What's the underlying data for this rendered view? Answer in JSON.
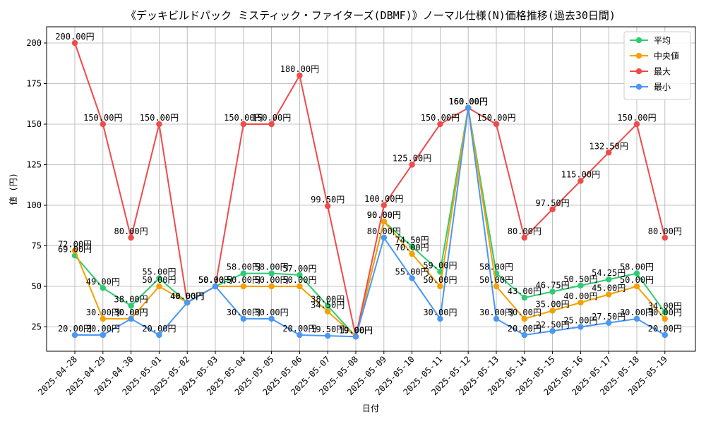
{
  "chart_data": {
    "type": "line",
    "title": "《デッキビルドパック ミスティック・ファイターズ(DBMF)》ノーマル仕様(N)価格推移(過去30日間)",
    "xlabel": "日付",
    "ylabel": "値 (円)",
    "ylim": [
      10,
      210
    ],
    "yticks": [
      25,
      50,
      75,
      100,
      125,
      150,
      175,
      200
    ],
    "grid": true,
    "legend_position": "top-right",
    "value_suffix": "円",
    "categories": [
      "2025-04-28",
      "2025-04-29",
      "2025-04-30",
      "2025-05-01",
      "2025-05-02",
      "2025-05-03",
      "2025-05-04",
      "2025-05-05",
      "2025-05-06",
      "2025-05-07",
      "2025-05-08",
      "2025-05-09",
      "2025-05-10",
      "2025-05-11",
      "2025-05-12",
      "2025-05-13",
      "2025-05-14",
      "2025-05-15",
      "2025-05-16",
      "2025-05-17",
      "2025-05-18",
      "2025-05-19"
    ],
    "series": [
      {
        "name": "平均",
        "color": "#2ecc71",
        "values": [
          69,
          49,
          38,
          55,
          40,
          50,
          58,
          58,
          57,
          38,
          19,
          90,
          74.5,
          59,
          160,
          58,
          43,
          46.75,
          50.5,
          54.25,
          58,
          34
        ]
      },
      {
        "name": "中央値",
        "color": "#f5a000",
        "values": [
          72,
          30,
          30,
          50,
          40,
          50,
          50,
          50,
          50,
          34.5,
          19,
          90,
          70,
          50,
          160,
          50,
          30,
          35,
          40,
          45,
          50,
          30
        ]
      },
      {
        "name": "最大",
        "color": "#ee4b4b",
        "values": [
          200,
          150,
          80,
          150,
          40,
          50,
          150,
          150,
          180,
          99.5,
          19,
          100,
          125,
          150,
          160,
          150,
          80,
          97.5,
          115,
          132.5,
          150,
          80
        ]
      },
      {
        "name": "最小",
        "color": "#4b97f2",
        "values": [
          20,
          20,
          30,
          20,
          40,
          50,
          30,
          30,
          20,
          19.5,
          19,
          80,
          55,
          30,
          160,
          30,
          20,
          22.5,
          25,
          27.5,
          30,
          20
        ]
      }
    ]
  }
}
